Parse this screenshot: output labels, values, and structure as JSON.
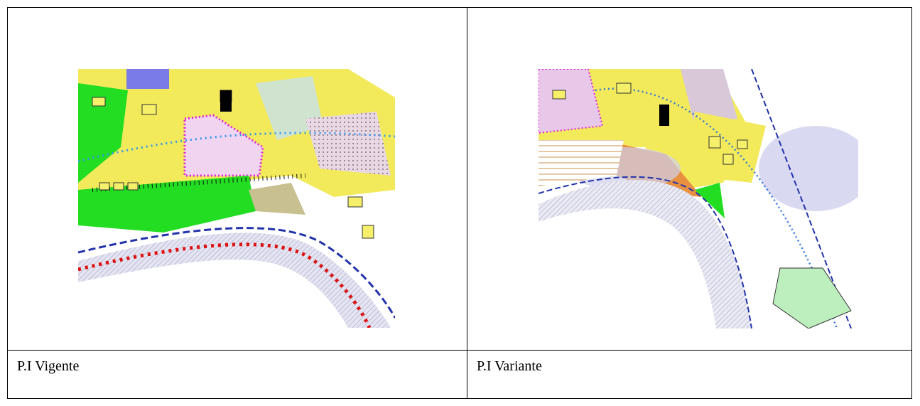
{
  "table": {
    "captions": [
      "P.I Vigente",
      "P.I Variante"
    ]
  }
}
